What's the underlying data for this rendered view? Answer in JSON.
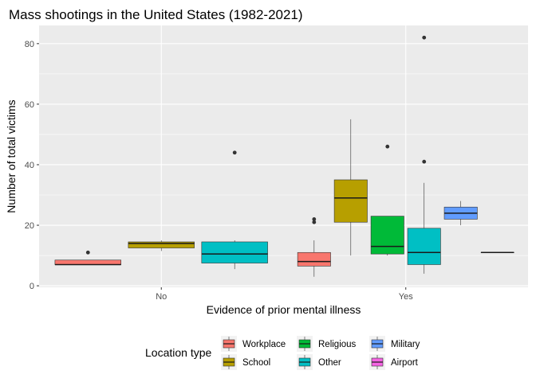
{
  "chart_data": {
    "type": "box",
    "title": "Mass shootings in the United States (1982-2021)",
    "xlabel": "Evidence of prior mental illness",
    "ylabel": "Number of total victims",
    "categories": [
      "No",
      "Yes"
    ],
    "ylim": [
      -0.5,
      86
    ],
    "yticks": [
      0,
      20,
      40,
      60,
      80
    ],
    "grid": true,
    "legend_title": "Location type",
    "legend_position": "bottom",
    "colors": {
      "Workplace": "#F8766D",
      "School": "#B79F00",
      "Religious": "#00BA38",
      "Other": "#00BFC4",
      "Military": "#619CFF",
      "Airport": "#F564E3"
    },
    "groups": [
      {
        "category": "No",
        "boxes": [
          {
            "location": "Workplace",
            "min": 7,
            "q1": 7,
            "median": 7,
            "q3": 8.5,
            "max": 8.5,
            "outliers": [
              11
            ]
          },
          {
            "location": "School",
            "min": 11.5,
            "q1": 12.5,
            "median": 14,
            "q3": 14.5,
            "max": 15,
            "outliers": []
          },
          {
            "location": "Other",
            "min": 5.5,
            "q1": 7.5,
            "median": 10.5,
            "q3": 14.5,
            "max": 15,
            "outliers": [
              44
            ]
          }
        ]
      },
      {
        "category": "Yes",
        "boxes": [
          {
            "location": "Workplace",
            "min": 3,
            "q1": 6.5,
            "median": 8,
            "q3": 11,
            "max": 15,
            "outliers": [
              21,
              22
            ]
          },
          {
            "location": "School",
            "min": 10,
            "q1": 21,
            "median": 29,
            "q3": 35,
            "max": 55,
            "outliers": []
          },
          {
            "location": "Religious",
            "min": 10,
            "q1": 10.5,
            "median": 13,
            "q3": 23,
            "max": 23,
            "outliers": [
              46
            ]
          },
          {
            "location": "Other",
            "min": 4,
            "q1": 7,
            "median": 11,
            "q3": 19,
            "max": 34,
            "outliers": [
              41,
              82
            ]
          },
          {
            "location": "Military",
            "min": 20,
            "q1": 22,
            "median": 24,
            "q3": 26,
            "max": 28,
            "outliers": []
          },
          {
            "location": "Airport",
            "min": 11,
            "q1": 11,
            "median": 11,
            "q3": 11,
            "max": 11,
            "outliers": []
          }
        ]
      }
    ],
    "legend_items": [
      "Workplace",
      "School",
      "Religious",
      "Other",
      "Military",
      "Airport"
    ]
  }
}
